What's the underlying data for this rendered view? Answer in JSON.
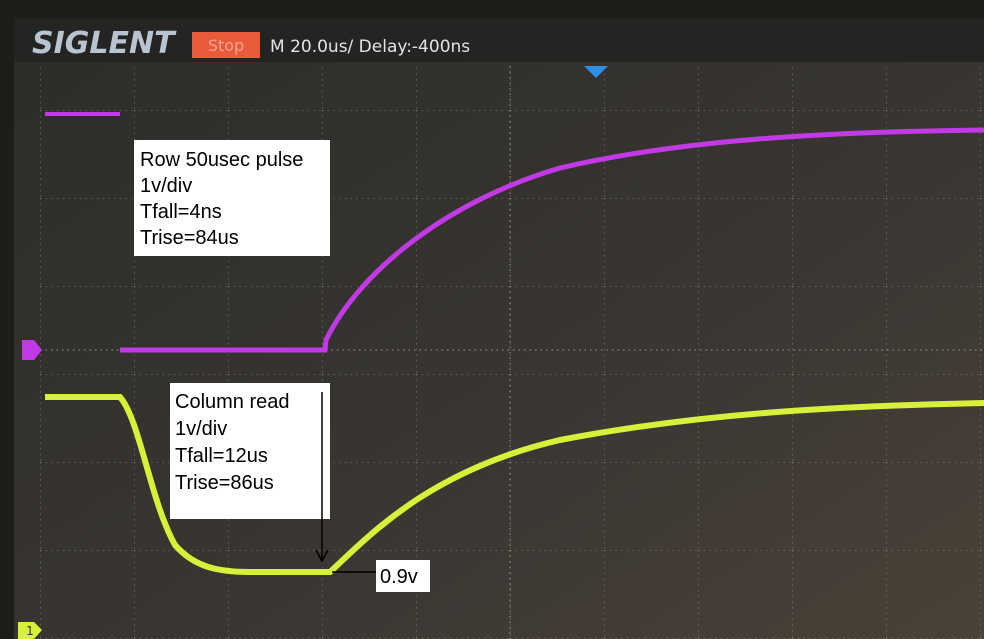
{
  "header": {
    "brand": "SIGLENT",
    "status": "Stop",
    "timebase": "M 20.0us/ Delay:-400ns"
  },
  "annotations": [
    {
      "lines": [
        "Row 50usec pulse",
        "1v/div",
        "Tfall=4ns",
        "Trise=84us"
      ]
    },
    {
      "lines": [
        "Column read",
        "1v/div",
        "Tfall=12us",
        "Trise=86us"
      ]
    }
  ],
  "marker_label": "0.9v",
  "channel": "1"
}
